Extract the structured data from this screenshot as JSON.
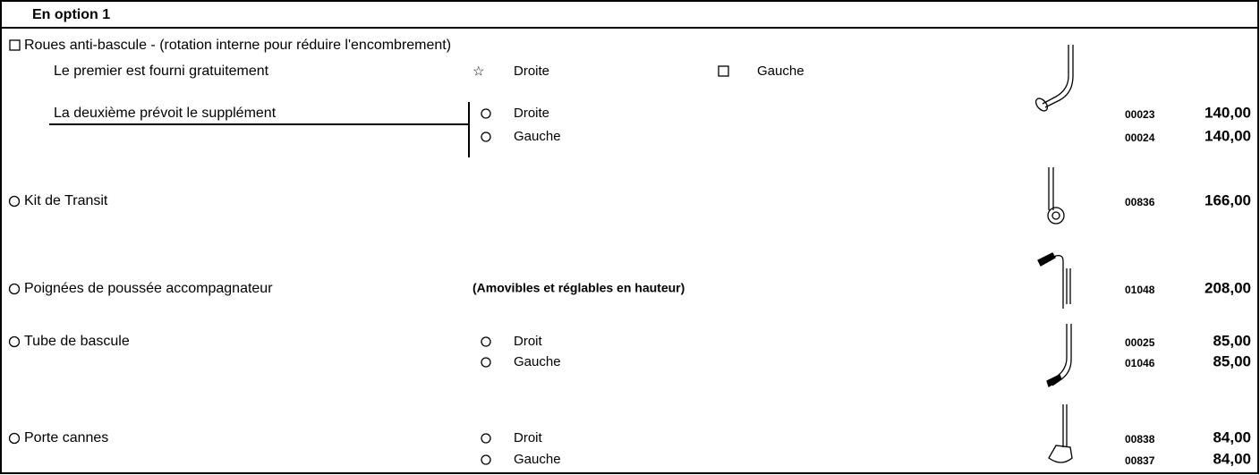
{
  "header": {
    "title": "En option 1"
  },
  "items": [
    {
      "label": "Roues anti-bascule - (rotation interne pour réduire l'encombrement)",
      "free": {
        "label": "Le premier est fourni gratuitement",
        "options": [
          "Droite",
          "Gauche"
        ]
      },
      "extra": {
        "label": "La deuxième prévoit le supplément",
        "options": [
          {
            "label": "Droite",
            "code": "00023",
            "price": "140,00"
          },
          {
            "label": "Gauche",
            "code": "00024",
            "price": "140,00"
          }
        ]
      }
    },
    {
      "label": "Kit de Transit",
      "code": "00836",
      "price": "166,00"
    },
    {
      "label": "Poignées de poussée accompagnateur",
      "note": "(Amovibles et réglables en hauteur)",
      "code": "01048",
      "price": "208,00"
    },
    {
      "label": "Tube de bascule",
      "options": [
        {
          "label": "Droit",
          "code": "00025",
          "price": "85,00"
        },
        {
          "label": "Gauche",
          "code": "01046",
          "price": "85,00"
        }
      ]
    },
    {
      "label": "Porte cannes",
      "options": [
        {
          "label": "Droit",
          "code": "00838",
          "price": "84,00"
        },
        {
          "label": "Gauche",
          "code": "00837",
          "price": "84,00"
        }
      ]
    }
  ]
}
